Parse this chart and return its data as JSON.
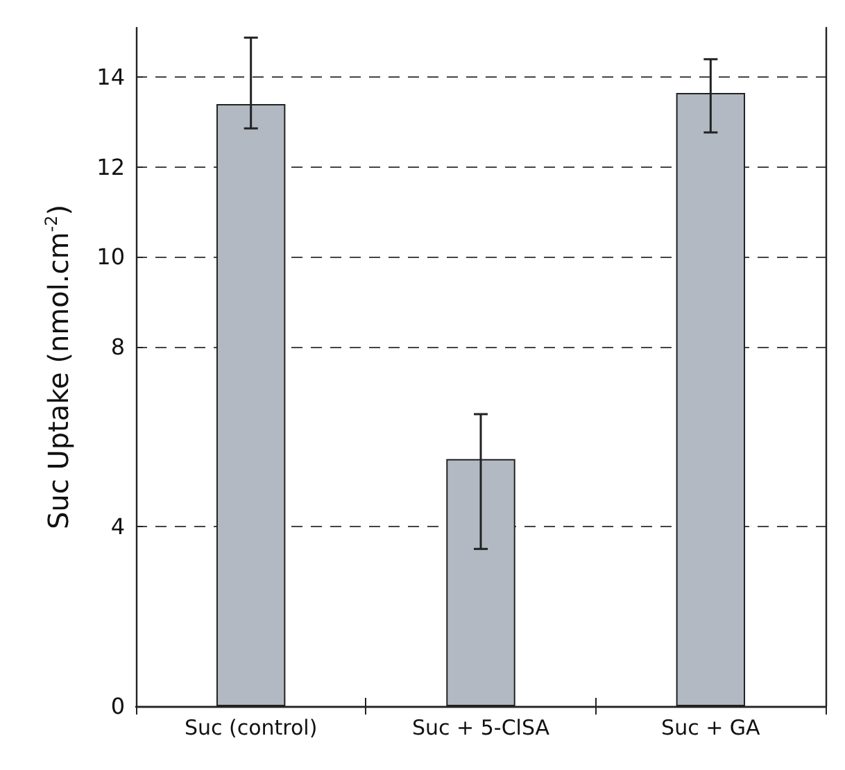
{
  "chart_data": {
    "type": "bar",
    "ylabel": "Suc Uptake (nmol.cm$^{-2}$)",
    "categories": [
      "Suc (control)",
      "Suc + 5-ClSA",
      "Suc + GA"
    ],
    "values": [
      13.4,
      5.5,
      13.65
    ],
    "errors": [
      [
        12.86,
        14.88
      ],
      [
        3.5,
        6.5
      ],
      [
        12.77,
        14.4
      ]
    ],
    "color": "#b2b9c2",
    "ylim": [
      0,
      15.1
    ],
    "yticks": [
      0,
      4,
      8,
      10,
      12,
      14
    ],
    "grid": "y"
  }
}
